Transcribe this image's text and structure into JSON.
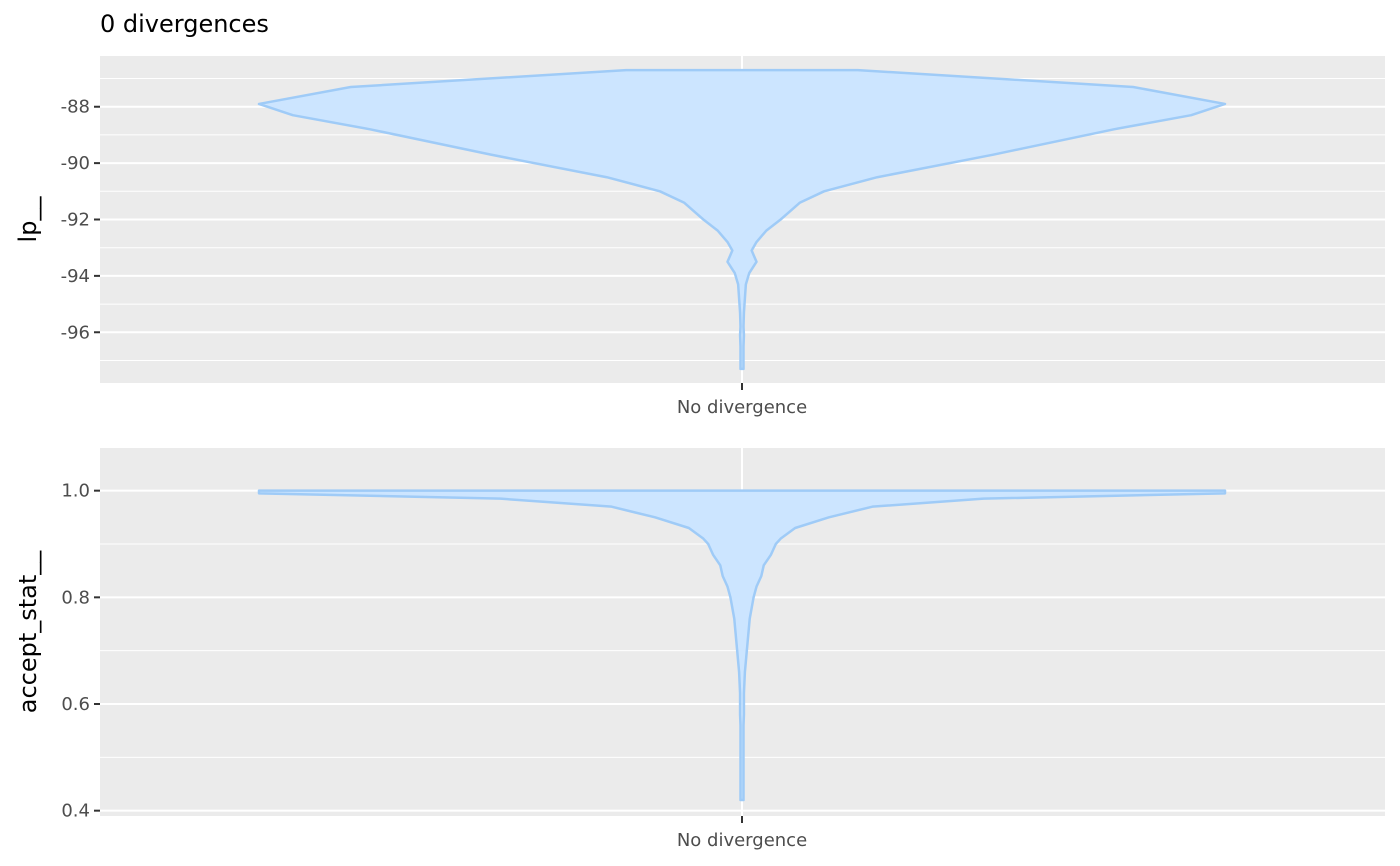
{
  "title": "0 divergences",
  "colors": {
    "panel_bg": "#ebebeb",
    "grid": "#ffffff",
    "violin_fill": "#cce5ff",
    "violin_line": "#9fcbf7",
    "tick_text": "#4d4d4d",
    "tick_mark": "#333333"
  },
  "chart_data": [
    {
      "type": "violin",
      "ylabel": "lp__",
      "xlabel": "",
      "categories": [
        "No divergence"
      ],
      "ylim": [
        -97.8,
        -86.2
      ],
      "yticks": [
        -88,
        -90,
        -92,
        -94,
        -96
      ],
      "ytick_labels": [
        "-88",
        "-90",
        "-92",
        "-94",
        "-96"
      ],
      "grid": true,
      "density_profile": {
        "y": [
          -86.7,
          -87.3,
          -87.9,
          -88.3,
          -88.8,
          -89.7,
          -90.5,
          -91.0,
          -91.4,
          -91.7,
          -92.0,
          -92.4,
          -92.8,
          -93.1,
          -93.5,
          -93.9,
          -94.3,
          -94.8,
          -95.3,
          -95.8,
          -96.1,
          -96.5,
          -97.0,
          -97.3
        ],
        "half_width": [
          0.24,
          0.81,
          1.0,
          0.93,
          0.77,
          0.52,
          0.28,
          0.17,
          0.12,
          0.1,
          0.08,
          0.05,
          0.03,
          0.02,
          0.03,
          0.015,
          0.008,
          0.006,
          0.004,
          0.002,
          0.004,
          0.002,
          0.003,
          0.003
        ]
      }
    },
    {
      "type": "violin",
      "ylabel": "accept_stat__",
      "xlabel": "",
      "categories": [
        "No divergence"
      ],
      "ylim": [
        0.39,
        1.08
      ],
      "yticks": [
        1.0,
        0.8,
        0.6,
        0.4
      ],
      "ytick_labels": [
        "1.0",
        "0.8",
        "0.6",
        "0.4"
      ],
      "grid": true,
      "density_profile": {
        "y": [
          1.0,
          0.995,
          0.985,
          0.97,
          0.95,
          0.93,
          0.91,
          0.9,
          0.88,
          0.86,
          0.84,
          0.82,
          0.8,
          0.78,
          0.76,
          0.74,
          0.72,
          0.7,
          0.68,
          0.66,
          0.64,
          0.62,
          0.6,
          0.58,
          0.56,
          0.54,
          0.5,
          0.46,
          0.42
        ],
        "half_width": [
          1.0,
          1.0,
          0.5,
          0.27,
          0.18,
          0.11,
          0.08,
          0.07,
          0.06,
          0.045,
          0.04,
          0.03,
          0.024,
          0.02,
          0.016,
          0.014,
          0.012,
          0.01,
          0.008,
          0.006,
          0.005,
          0.004,
          0.004,
          0.004,
          0.003,
          0.003,
          0.002,
          0.002,
          0.002
        ]
      }
    }
  ]
}
